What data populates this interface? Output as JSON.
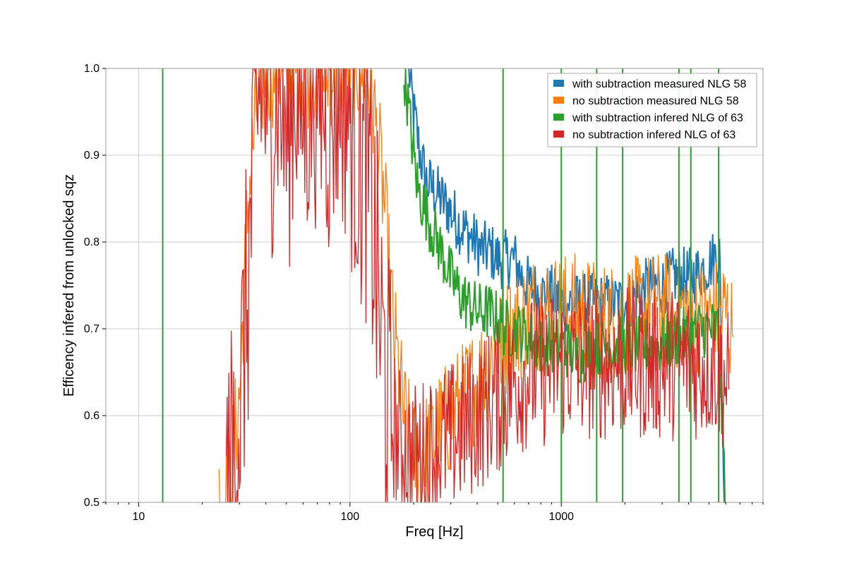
{
  "chart_data": {
    "type": "line",
    "title": "",
    "xlabel": "Freq [Hz]",
    "ylabel": "Efficency infered from unlocked sqz",
    "xscale": "log",
    "xlim": [
      7,
      9000
    ],
    "ylim": [
      0.5,
      1.0
    ],
    "grid": true,
    "legend_placement": "top-right",
    "xticks": [
      {
        "value": 10,
        "label": "10"
      },
      {
        "value": 100,
        "label": "100"
      },
      {
        "value": 1000,
        "label": "1000"
      }
    ],
    "yticks": [
      {
        "value": 0.5,
        "label": "0.5"
      },
      {
        "value": 0.6,
        "label": "0.6"
      },
      {
        "value": 0.7,
        "label": "0.7"
      },
      {
        "value": 0.8,
        "label": "0.8"
      },
      {
        "value": 0.9,
        "label": "0.9"
      },
      {
        "value": 1.0,
        "label": "1.0"
      }
    ],
    "series": [
      {
        "name": "with subtraction measured NLG 58",
        "color": "#1f77b4",
        "x": [
          190,
          200,
          215,
          230,
          250,
          270,
          290,
          310,
          330,
          360,
          390,
          420,
          460,
          500,
          540,
          600,
          650,
          700,
          800,
          900,
          1000,
          1100,
          1200,
          1400,
          1600,
          1800,
          2000,
          2300,
          2600,
          3000,
          3400,
          3800,
          4200,
          4700,
          5200,
          5600,
          5900
        ],
        "y": [
          1.0,
          0.95,
          0.9,
          0.87,
          0.86,
          0.85,
          0.84,
          0.83,
          0.82,
          0.81,
          0.8,
          0.79,
          0.79,
          0.78,
          0.78,
          0.78,
          0.76,
          0.75,
          0.74,
          0.74,
          0.73,
          0.73,
          0.73,
          0.73,
          0.73,
          0.73,
          0.73,
          0.74,
          0.75,
          0.75,
          0.76,
          0.76,
          0.76,
          0.77,
          0.78,
          0.79,
          0.5
        ]
      },
      {
        "name": "no subtraction measured NLG 58",
        "color": "#ff7f0e",
        "x": [
          24,
          27,
          30,
          33,
          36,
          40,
          45,
          50,
          60,
          70,
          80,
          90,
          100,
          110,
          120,
          130,
          145,
          160,
          180,
          200,
          230,
          260,
          300,
          350,
          400,
          450,
          500,
          600,
          700,
          800,
          1000,
          1200,
          1500,
          2000,
          2500,
          3000,
          4000,
          5000,
          6000,
          6500
        ],
        "y": [
          0.5,
          0.52,
          0.62,
          0.85,
          0.95,
          1.0,
          1.0,
          1.0,
          1.0,
          1.0,
          1.0,
          1.0,
          1.0,
          1.0,
          1.0,
          0.95,
          0.85,
          0.7,
          0.6,
          0.55,
          0.56,
          0.58,
          0.6,
          0.62,
          0.64,
          0.66,
          0.68,
          0.7,
          0.72,
          0.72,
          0.72,
          0.72,
          0.71,
          0.71,
          0.72,
          0.72,
          0.72,
          0.71,
          0.72,
          0.69
        ]
      },
      {
        "name": "with subtraction infered NLG of 63",
        "color": "#2ca02c",
        "x": [
          180,
          190,
          200,
          210,
          225,
          240,
          260,
          280,
          300,
          330,
          360,
          400,
          450,
          500,
          550,
          600,
          700,
          800,
          900,
          1000,
          1200,
          1500,
          2000,
          2500,
          3000,
          3500,
          4000,
          4500,
          5000,
          5500,
          6000
        ],
        "y": [
          1.0,
          0.95,
          0.9,
          0.86,
          0.84,
          0.82,
          0.8,
          0.78,
          0.76,
          0.74,
          0.73,
          0.72,
          0.72,
          0.71,
          0.7,
          0.7,
          0.69,
          0.68,
          0.68,
          0.68,
          0.67,
          0.68,
          0.68,
          0.68,
          0.68,
          0.69,
          0.69,
          0.7,
          0.7,
          0.7,
          0.5
        ]
      },
      {
        "name": "no subtraction infered NLG of 63",
        "color": "#d62728",
        "x": [
          26,
          30,
          33,
          35,
          38,
          42,
          46,
          50,
          55,
          60,
          70,
          80,
          90,
          100,
          110,
          120,
          130,
          140,
          150,
          170,
          200,
          240,
          280,
          330,
          400,
          500,
          600,
          700,
          800,
          1000,
          1200,
          1500,
          2000,
          2500,
          3000,
          4000,
          5000,
          5500,
          6200
        ],
        "y": [
          0.5,
          0.6,
          0.75,
          0.9,
          1.0,
          0.95,
          1.0,
          0.92,
          1.0,
          0.95,
          1.0,
          0.95,
          1.0,
          0.95,
          0.9,
          0.88,
          0.8,
          0.7,
          0.62,
          0.57,
          0.55,
          0.56,
          0.57,
          0.58,
          0.6,
          0.62,
          0.64,
          0.65,
          0.65,
          0.66,
          0.66,
          0.66,
          0.66,
          0.66,
          0.66,
          0.66,
          0.66,
          0.66,
          0.63
        ]
      }
    ],
    "spikes": {
      "with subtraction infered NLG of 63": [
        13,
        530,
        1000,
        1470,
        1950,
        3600,
        4100,
        5550
      ]
    }
  }
}
